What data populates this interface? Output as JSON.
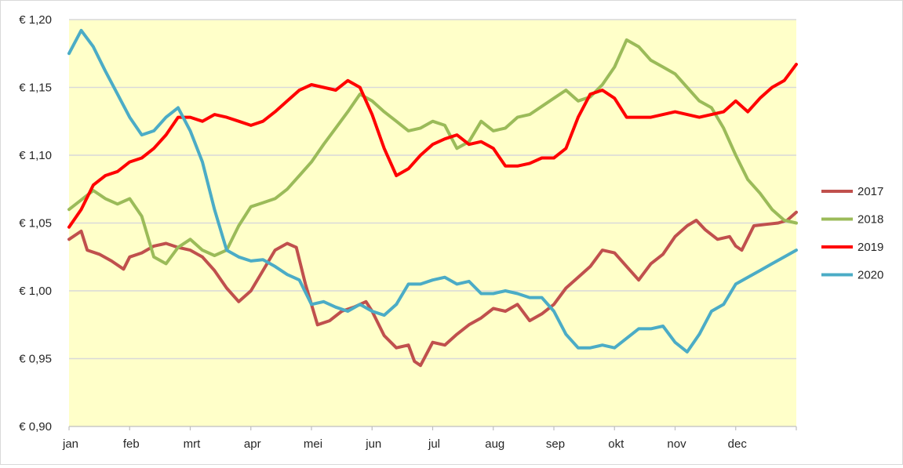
{
  "chart_data": {
    "type": "line",
    "categories": [
      "jan",
      "feb",
      "mrt",
      "apr",
      "mei",
      "jun",
      "jul",
      "aug",
      "sep",
      "okt",
      "nov",
      "dec"
    ],
    "y_tick_labels": [
      "€ 0,90",
      "€ 0,95",
      "€ 1,00",
      "€ 1,05",
      "€ 1,10",
      "€ 1,15",
      "€ 1,20"
    ],
    "y_ticks": [
      0.9,
      0.95,
      1.0,
      1.05,
      1.1,
      1.15,
      1.2
    ],
    "ylim": [
      0.9,
      1.2
    ],
    "plot_background": "#FFFFC9",
    "grid": true,
    "legend_position": "right",
    "series": [
      {
        "name": "2017",
        "color": "#C0504D",
        "values": [
          [
            0.0,
            1.038
          ],
          [
            0.2,
            1.044
          ],
          [
            0.3,
            1.03
          ],
          [
            0.5,
            1.027
          ],
          [
            0.7,
            1.022
          ],
          [
            0.9,
            1.016
          ],
          [
            1.0,
            1.025
          ],
          [
            1.2,
            1.028
          ],
          [
            1.4,
            1.033
          ],
          [
            1.6,
            1.035
          ],
          [
            1.8,
            1.032
          ],
          [
            2.0,
            1.03
          ],
          [
            2.2,
            1.025
          ],
          [
            2.4,
            1.015
          ],
          [
            2.6,
            1.002
          ],
          [
            2.8,
            0.992
          ],
          [
            3.0,
            1.0
          ],
          [
            3.2,
            1.015
          ],
          [
            3.4,
            1.03
          ],
          [
            3.6,
            1.035
          ],
          [
            3.75,
            1.032
          ],
          [
            3.9,
            1.005
          ],
          [
            4.0,
            0.99
          ],
          [
            4.1,
            0.975
          ],
          [
            4.3,
            0.978
          ],
          [
            4.5,
            0.985
          ],
          [
            4.7,
            0.988
          ],
          [
            4.9,
            0.992
          ],
          [
            5.0,
            0.985
          ],
          [
            5.2,
            0.967
          ],
          [
            5.4,
            0.958
          ],
          [
            5.6,
            0.96
          ],
          [
            5.7,
            0.948
          ],
          [
            5.8,
            0.945
          ],
          [
            6.0,
            0.962
          ],
          [
            6.2,
            0.96
          ],
          [
            6.4,
            0.968
          ],
          [
            6.6,
            0.975
          ],
          [
            6.8,
            0.98
          ],
          [
            7.0,
            0.987
          ],
          [
            7.2,
            0.985
          ],
          [
            7.4,
            0.99
          ],
          [
            7.6,
            0.978
          ],
          [
            7.8,
            0.983
          ],
          [
            8.0,
            0.99
          ],
          [
            8.2,
            1.002
          ],
          [
            8.4,
            1.01
          ],
          [
            8.6,
            1.018
          ],
          [
            8.8,
            1.03
          ],
          [
            9.0,
            1.028
          ],
          [
            9.2,
            1.018
          ],
          [
            9.4,
            1.008
          ],
          [
            9.6,
            1.02
          ],
          [
            9.8,
            1.027
          ],
          [
            10.0,
            1.04
          ],
          [
            10.2,
            1.048
          ],
          [
            10.35,
            1.052
          ],
          [
            10.5,
            1.045
          ],
          [
            10.7,
            1.038
          ],
          [
            10.9,
            1.04
          ],
          [
            11.0,
            1.033
          ],
          [
            11.1,
            1.03
          ],
          [
            11.3,
            1.048
          ],
          [
            11.5,
            1.049
          ],
          [
            11.7,
            1.05
          ],
          [
            11.85,
            1.052
          ],
          [
            12.0,
            1.058
          ]
        ]
      },
      {
        "name": "2018",
        "color": "#9BBB59",
        "values": [
          [
            0.0,
            1.06
          ],
          [
            0.2,
            1.067
          ],
          [
            0.4,
            1.074
          ],
          [
            0.6,
            1.068
          ],
          [
            0.8,
            1.064
          ],
          [
            1.0,
            1.068
          ],
          [
            1.2,
            1.055
          ],
          [
            1.4,
            1.025
          ],
          [
            1.6,
            1.02
          ],
          [
            1.8,
            1.032
          ],
          [
            2.0,
            1.038
          ],
          [
            2.2,
            1.03
          ],
          [
            2.4,
            1.026
          ],
          [
            2.6,
            1.03
          ],
          [
            2.8,
            1.048
          ],
          [
            3.0,
            1.062
          ],
          [
            3.2,
            1.065
          ],
          [
            3.4,
            1.068
          ],
          [
            3.6,
            1.075
          ],
          [
            3.8,
            1.085
          ],
          [
            4.0,
            1.095
          ],
          [
            4.2,
            1.108
          ],
          [
            4.4,
            1.12
          ],
          [
            4.6,
            1.132
          ],
          [
            4.8,
            1.145
          ],
          [
            5.0,
            1.14
          ],
          [
            5.2,
            1.132
          ],
          [
            5.4,
            1.125
          ],
          [
            5.6,
            1.118
          ],
          [
            5.8,
            1.12
          ],
          [
            6.0,
            1.125
          ],
          [
            6.2,
            1.122
          ],
          [
            6.4,
            1.105
          ],
          [
            6.6,
            1.11
          ],
          [
            6.8,
            1.125
          ],
          [
            7.0,
            1.118
          ],
          [
            7.2,
            1.12
          ],
          [
            7.4,
            1.128
          ],
          [
            7.6,
            1.13
          ],
          [
            7.8,
            1.136
          ],
          [
            8.0,
            1.142
          ],
          [
            8.2,
            1.148
          ],
          [
            8.4,
            1.14
          ],
          [
            8.6,
            1.143
          ],
          [
            8.8,
            1.152
          ],
          [
            9.0,
            1.165
          ],
          [
            9.2,
            1.185
          ],
          [
            9.4,
            1.18
          ],
          [
            9.6,
            1.17
          ],
          [
            9.8,
            1.165
          ],
          [
            10.0,
            1.16
          ],
          [
            10.2,
            1.15
          ],
          [
            10.4,
            1.14
          ],
          [
            10.6,
            1.135
          ],
          [
            10.8,
            1.12
          ],
          [
            11.0,
            1.1
          ],
          [
            11.2,
            1.082
          ],
          [
            11.4,
            1.072
          ],
          [
            11.6,
            1.06
          ],
          [
            11.8,
            1.052
          ],
          [
            12.0,
            1.05
          ]
        ]
      },
      {
        "name": "2019",
        "color": "#FF0000",
        "values": [
          [
            0.0,
            1.047
          ],
          [
            0.2,
            1.06
          ],
          [
            0.4,
            1.078
          ],
          [
            0.6,
            1.085
          ],
          [
            0.8,
            1.088
          ],
          [
            1.0,
            1.095
          ],
          [
            1.2,
            1.098
          ],
          [
            1.4,
            1.105
          ],
          [
            1.6,
            1.115
          ],
          [
            1.8,
            1.128
          ],
          [
            2.0,
            1.128
          ],
          [
            2.2,
            1.125
          ],
          [
            2.4,
            1.13
          ],
          [
            2.6,
            1.128
          ],
          [
            2.8,
            1.125
          ],
          [
            3.0,
            1.122
          ],
          [
            3.2,
            1.125
          ],
          [
            3.4,
            1.132
          ],
          [
            3.6,
            1.14
          ],
          [
            3.8,
            1.148
          ],
          [
            4.0,
            1.152
          ],
          [
            4.2,
            1.15
          ],
          [
            4.4,
            1.148
          ],
          [
            4.6,
            1.155
          ],
          [
            4.8,
            1.15
          ],
          [
            5.0,
            1.13
          ],
          [
            5.2,
            1.105
          ],
          [
            5.4,
            1.085
          ],
          [
            5.6,
            1.09
          ],
          [
            5.8,
            1.1
          ],
          [
            6.0,
            1.108
          ],
          [
            6.2,
            1.112
          ],
          [
            6.4,
            1.115
          ],
          [
            6.6,
            1.108
          ],
          [
            6.8,
            1.11
          ],
          [
            7.0,
            1.105
          ],
          [
            7.2,
            1.092
          ],
          [
            7.4,
            1.092
          ],
          [
            7.6,
            1.094
          ],
          [
            7.8,
            1.098
          ],
          [
            8.0,
            1.098
          ],
          [
            8.2,
            1.105
          ],
          [
            8.4,
            1.128
          ],
          [
            8.6,
            1.145
          ],
          [
            8.8,
            1.148
          ],
          [
            9.0,
            1.142
          ],
          [
            9.2,
            1.128
          ],
          [
            9.4,
            1.128
          ],
          [
            9.6,
            1.128
          ],
          [
            9.8,
            1.13
          ],
          [
            10.0,
            1.132
          ],
          [
            10.2,
            1.13
          ],
          [
            10.4,
            1.128
          ],
          [
            10.6,
            1.13
          ],
          [
            10.8,
            1.132
          ],
          [
            11.0,
            1.14
          ],
          [
            11.2,
            1.132
          ],
          [
            11.4,
            1.142
          ],
          [
            11.6,
            1.15
          ],
          [
            11.8,
            1.155
          ],
          [
            12.0,
            1.167
          ]
        ]
      },
      {
        "name": "2020",
        "color": "#4BACC6",
        "values": [
          [
            0.0,
            1.175
          ],
          [
            0.2,
            1.192
          ],
          [
            0.4,
            1.18
          ],
          [
            0.6,
            1.162
          ],
          [
            0.8,
            1.145
          ],
          [
            1.0,
            1.128
          ],
          [
            1.2,
            1.115
          ],
          [
            1.4,
            1.118
          ],
          [
            1.6,
            1.128
          ],
          [
            1.8,
            1.135
          ],
          [
            2.0,
            1.118
          ],
          [
            2.2,
            1.095
          ],
          [
            2.4,
            1.06
          ],
          [
            2.6,
            1.03
          ],
          [
            2.8,
            1.025
          ],
          [
            3.0,
            1.022
          ],
          [
            3.2,
            1.023
          ],
          [
            3.4,
            1.018
          ],
          [
            3.6,
            1.012
          ],
          [
            3.8,
            1.008
          ],
          [
            4.0,
            0.99
          ],
          [
            4.2,
            0.992
          ],
          [
            4.4,
            0.988
          ],
          [
            4.6,
            0.985
          ],
          [
            4.8,
            0.99
          ],
          [
            5.0,
            0.985
          ],
          [
            5.2,
            0.982
          ],
          [
            5.4,
            0.99
          ],
          [
            5.6,
            1.005
          ],
          [
            5.8,
            1.005
          ],
          [
            6.0,
            1.008
          ],
          [
            6.2,
            1.01
          ],
          [
            6.4,
            1.005
          ],
          [
            6.6,
            1.007
          ],
          [
            6.8,
            0.998
          ],
          [
            7.0,
            0.998
          ],
          [
            7.2,
            1.0
          ],
          [
            7.4,
            0.998
          ],
          [
            7.6,
            0.995
          ],
          [
            7.8,
            0.995
          ],
          [
            8.0,
            0.985
          ],
          [
            8.2,
            0.968
          ],
          [
            8.4,
            0.958
          ],
          [
            8.6,
            0.958
          ],
          [
            8.8,
            0.96
          ],
          [
            9.0,
            0.958
          ],
          [
            9.2,
            0.965
          ],
          [
            9.4,
            0.972
          ],
          [
            9.6,
            0.972
          ],
          [
            9.8,
            0.974
          ],
          [
            10.0,
            0.962
          ],
          [
            10.2,
            0.955
          ],
          [
            10.4,
            0.968
          ],
          [
            10.6,
            0.985
          ],
          [
            10.8,
            0.99
          ],
          [
            11.0,
            1.005
          ],
          [
            11.2,
            1.01
          ],
          [
            11.4,
            1.015
          ],
          [
            11.6,
            1.02
          ],
          [
            11.8,
            1.025
          ],
          [
            12.0,
            1.03
          ]
        ]
      }
    ]
  }
}
